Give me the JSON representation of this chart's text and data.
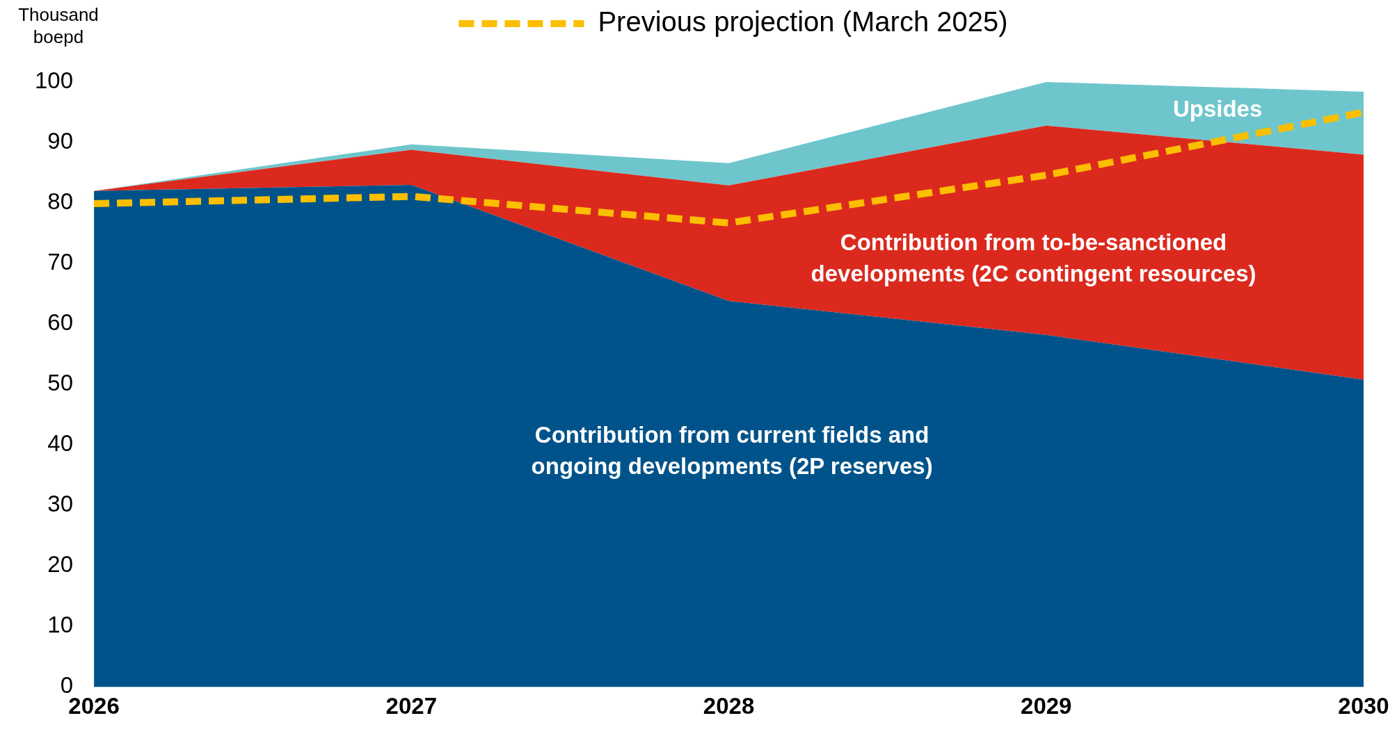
{
  "chart_data": {
    "type": "area",
    "stacked": true,
    "ylabel": "Thousand boepd",
    "categories": [
      "2026",
      "2027",
      "2028",
      "2029",
      "2030"
    ],
    "ylim": [
      0,
      100
    ],
    "yticks": [
      0,
      10,
      20,
      30,
      40,
      50,
      60,
      70,
      80,
      90,
      100
    ],
    "grid": false,
    "legend": "top",
    "series": [
      {
        "name": "Contribution from current fields and ongoing developments (2P reserves)",
        "color": "#00538a",
        "values": [
          82,
          83,
          63.8,
          58.2,
          50.8
        ]
      },
      {
        "name": "Contribution from to-be-sanctioned developments (2C contingent resources)",
        "color": "#dc291e",
        "values": [
          0,
          5.8,
          19.1,
          34.6,
          37.2
        ]
      },
      {
        "name": "Upsides",
        "color": "#6ec6cc",
        "values": [
          0,
          0.9,
          3.7,
          7.2,
          10.4
        ]
      },
      {
        "name": "Previous projection (March 2025)",
        "type": "line",
        "line_style": "dashed",
        "color": "#fbbf00",
        "values": [
          79.9,
          81.1,
          76.7,
          84.6,
          95
        ]
      }
    ]
  }
}
